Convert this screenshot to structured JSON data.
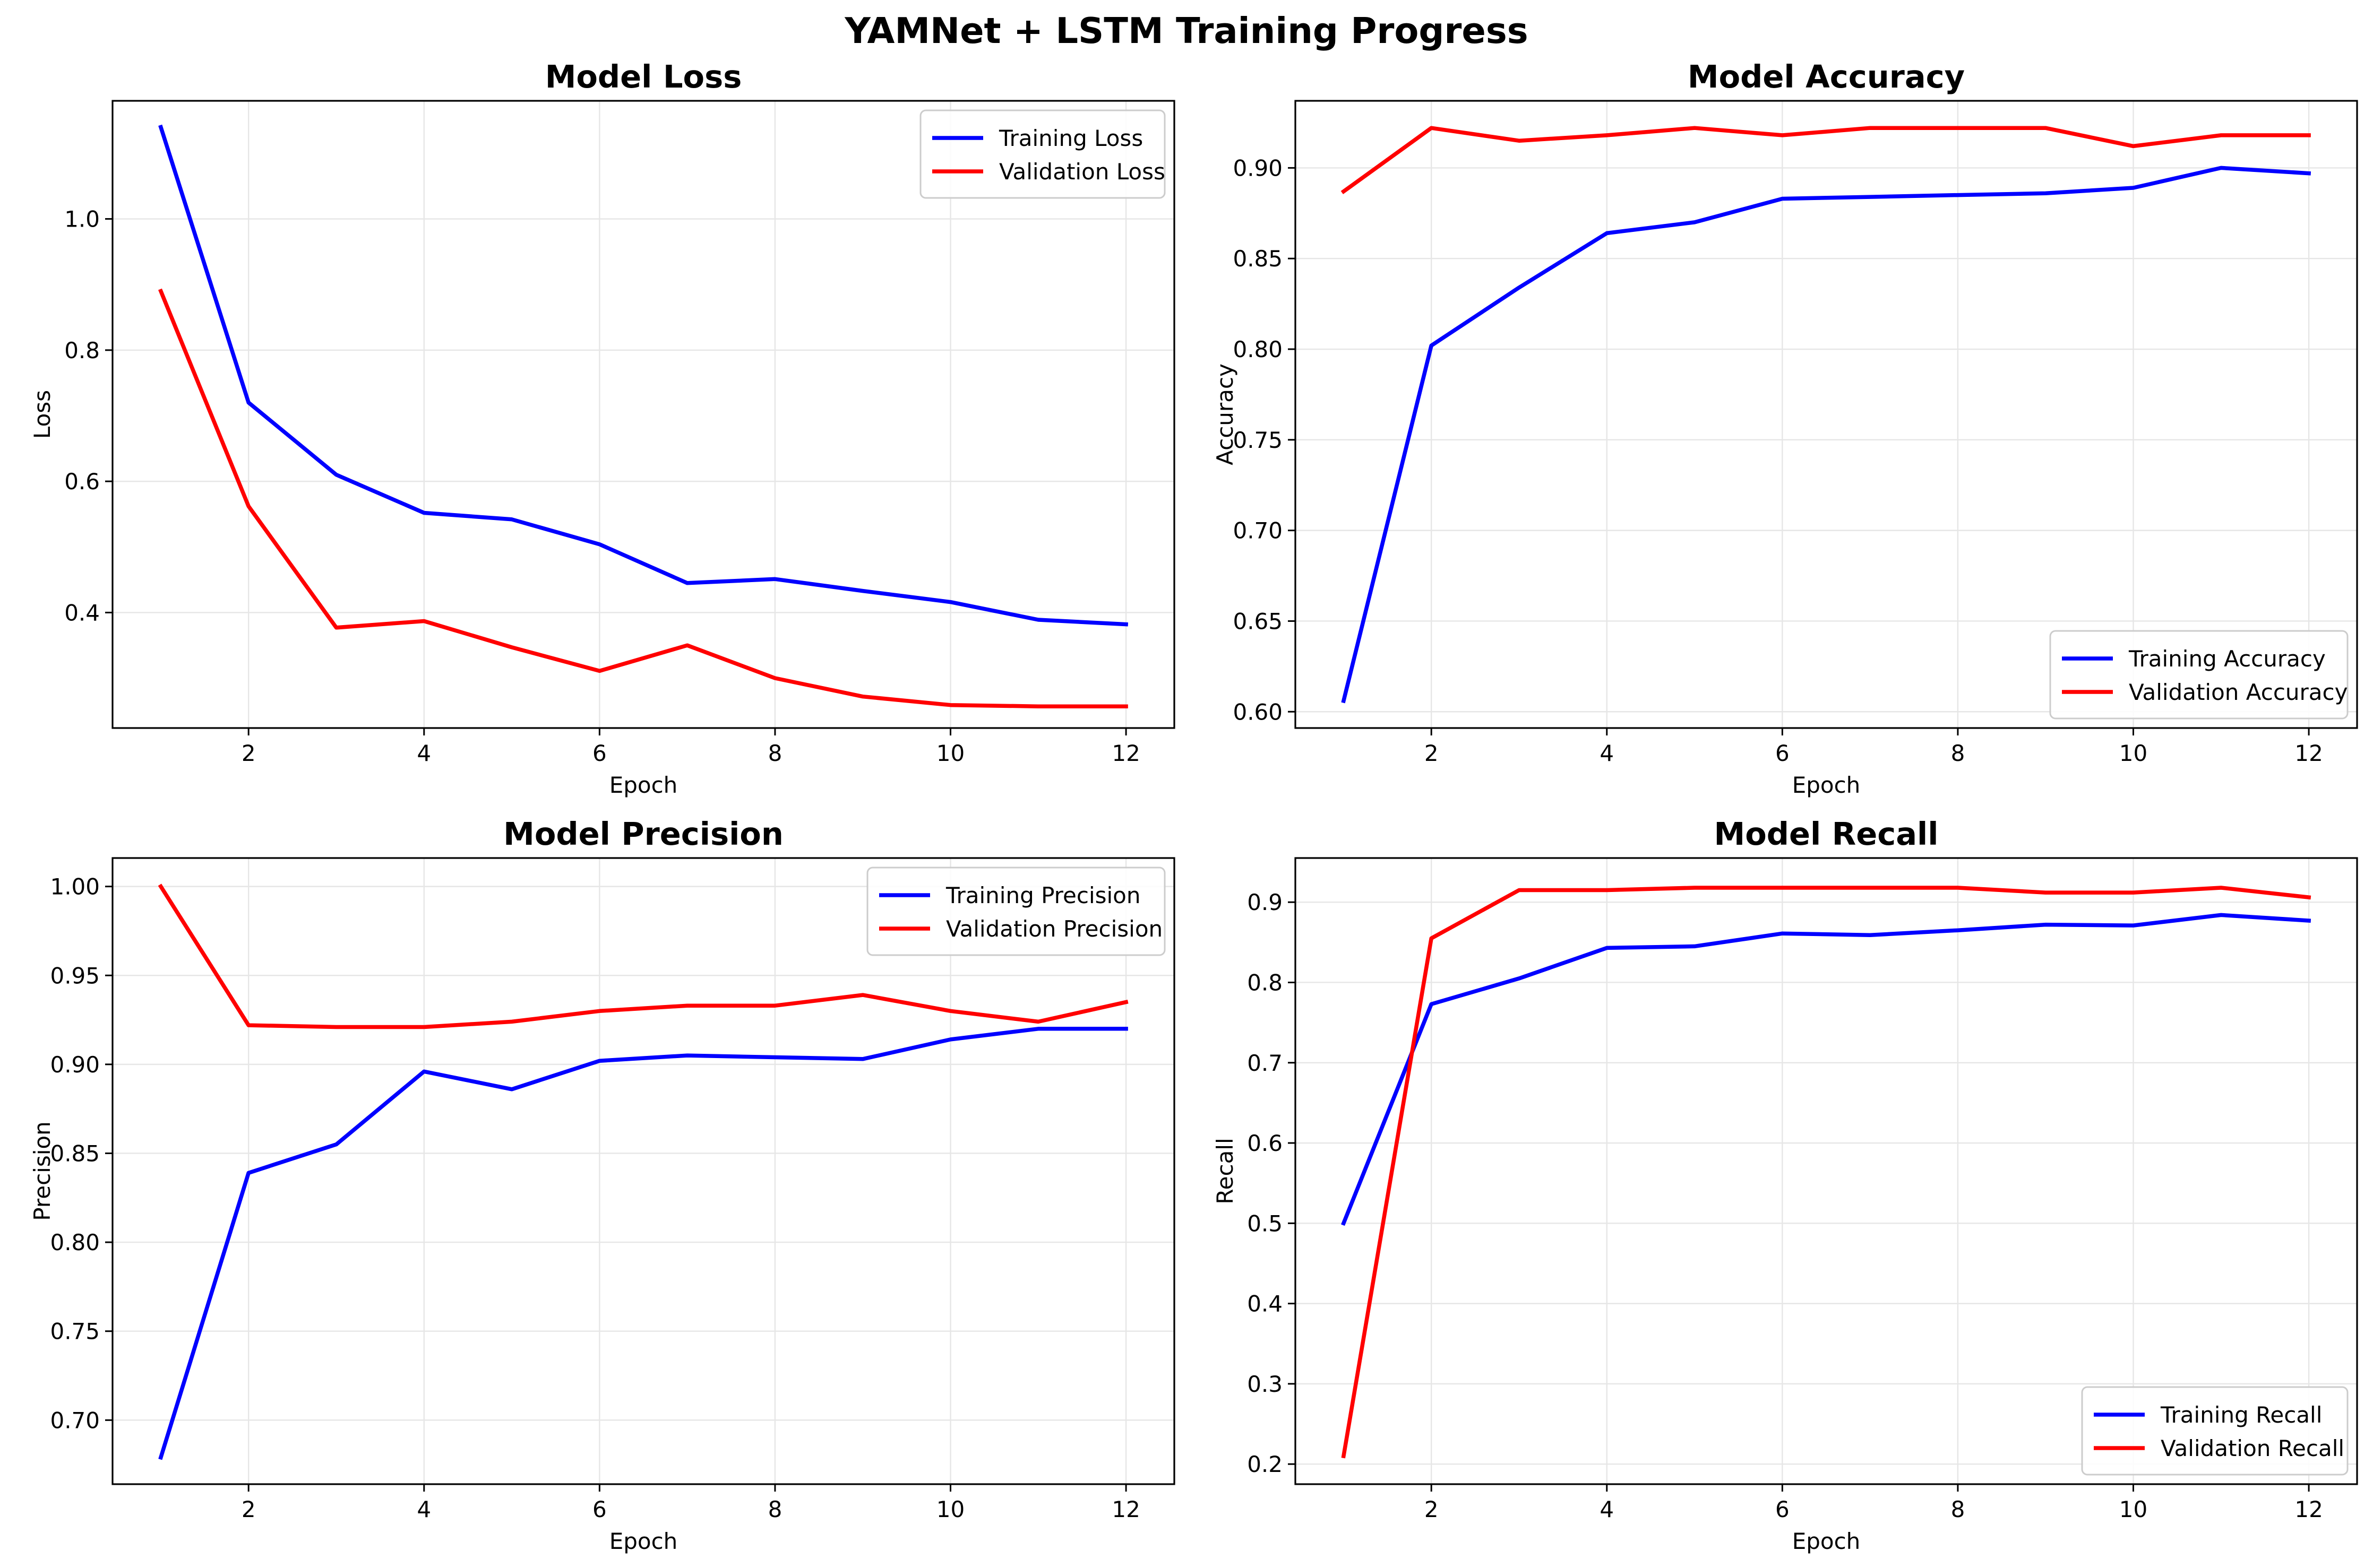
{
  "figure": {
    "title": "YAMNet + LSTM Training Progress"
  },
  "colors": {
    "training": "#0000ff",
    "validation": "#ff0000",
    "grid": "#e6e6e6",
    "axes": "#000000"
  },
  "chart_data": [
    {
      "type": "line",
      "title": "Model Loss",
      "xlabel": "Epoch",
      "ylabel": "Loss",
      "x": [
        1,
        2,
        3,
        4,
        5,
        6,
        7,
        8,
        9,
        10,
        11,
        12
      ],
      "xlim": [
        0.45,
        12.55
      ],
      "ylim": [
        0.224,
        1.18
      ],
      "xticks": [
        2,
        4,
        6,
        8,
        10,
        12
      ],
      "yticks": [
        0.4,
        0.6,
        0.8,
        1.0
      ],
      "ytick_labels": [
        "0.4",
        "0.6",
        "0.8",
        "1.0"
      ],
      "grid": true,
      "legend_position": "top-right",
      "series": [
        {
          "name": "Training Loss",
          "color": "#0000ff",
          "values": [
            1.14,
            0.72,
            0.61,
            0.552,
            0.542,
            0.504,
            0.445,
            0.451,
            0.433,
            0.416,
            0.389,
            0.382
          ]
        },
        {
          "name": "Validation Loss",
          "color": "#ff0000",
          "values": [
            0.89,
            0.562,
            0.377,
            0.387,
            0.347,
            0.311,
            0.35,
            0.3,
            0.272,
            0.259,
            0.257,
            0.257
          ]
        }
      ]
    },
    {
      "type": "line",
      "title": "Model Accuracy",
      "xlabel": "Epoch",
      "ylabel": "Accuracy",
      "x": [
        1,
        2,
        3,
        4,
        5,
        6,
        7,
        8,
        9,
        10,
        11,
        12
      ],
      "xlim": [
        0.45,
        12.55
      ],
      "ylim": [
        0.591,
        0.937
      ],
      "xticks": [
        2,
        4,
        6,
        8,
        10,
        12
      ],
      "yticks": [
        0.6,
        0.65,
        0.7,
        0.75,
        0.8,
        0.85,
        0.9
      ],
      "ytick_labels": [
        "0.60",
        "0.65",
        "0.70",
        "0.75",
        "0.80",
        "0.85",
        "0.90"
      ],
      "grid": true,
      "legend_position": "bottom-right",
      "series": [
        {
          "name": "Training Accuracy",
          "color": "#0000ff",
          "values": [
            0.606,
            0.802,
            0.834,
            0.864,
            0.87,
            0.883,
            0.884,
            0.885,
            0.886,
            0.889,
            0.9,
            0.897
          ]
        },
        {
          "name": "Validation Accuracy",
          "color": "#ff0000",
          "values": [
            0.887,
            0.922,
            0.915,
            0.918,
            0.922,
            0.918,
            0.922,
            0.922,
            0.922,
            0.912,
            0.918,
            0.918
          ]
        }
      ]
    },
    {
      "type": "line",
      "title": "Model Precision",
      "xlabel": "Epoch",
      "ylabel": "Precision",
      "x": [
        1,
        2,
        3,
        4,
        5,
        6,
        7,
        8,
        9,
        10,
        11,
        12
      ],
      "xlim": [
        0.45,
        12.55
      ],
      "ylim": [
        0.664,
        1.016
      ],
      "xticks": [
        2,
        4,
        6,
        8,
        10,
        12
      ],
      "yticks": [
        0.7,
        0.75,
        0.8,
        0.85,
        0.9,
        0.95,
        1.0
      ],
      "ytick_labels": [
        "0.70",
        "0.75",
        "0.80",
        "0.85",
        "0.90",
        "0.95",
        "1.00"
      ],
      "grid": true,
      "legend_position": "top-right",
      "series": [
        {
          "name": "Training Precision",
          "color": "#0000ff",
          "values": [
            0.679,
            0.839,
            0.855,
            0.896,
            0.886,
            0.902,
            0.905,
            0.904,
            0.903,
            0.914,
            0.92,
            0.92
          ]
        },
        {
          "name": "Validation Precision",
          "color": "#ff0000",
          "values": [
            1.0,
            0.922,
            0.921,
            0.921,
            0.924,
            0.93,
            0.933,
            0.933,
            0.939,
            0.93,
            0.924,
            0.935
          ]
        }
      ]
    },
    {
      "type": "line",
      "title": "Model Recall",
      "xlabel": "Epoch",
      "ylabel": "Recall",
      "x": [
        1,
        2,
        3,
        4,
        5,
        6,
        7,
        8,
        9,
        10,
        11,
        12
      ],
      "xlim": [
        0.45,
        12.55
      ],
      "ylim": [
        0.175,
        0.955
      ],
      "xticks": [
        2,
        4,
        6,
        8,
        10,
        12
      ],
      "yticks": [
        0.2,
        0.3,
        0.4,
        0.5,
        0.6,
        0.7,
        0.8,
        0.9
      ],
      "ytick_labels": [
        "0.2",
        "0.3",
        "0.4",
        "0.5",
        "0.6",
        "0.7",
        "0.8",
        "0.9"
      ],
      "grid": true,
      "legend_position": "bottom-right",
      "series": [
        {
          "name": "Training Recall",
          "color": "#0000ff",
          "values": [
            0.5,
            0.773,
            0.805,
            0.843,
            0.845,
            0.861,
            0.859,
            0.865,
            0.872,
            0.871,
            0.884,
            0.877
          ]
        },
        {
          "name": "Validation Recall",
          "color": "#ff0000",
          "values": [
            0.21,
            0.855,
            0.915,
            0.915,
            0.918,
            0.918,
            0.918,
            0.918,
            0.912,
            0.912,
            0.918,
            0.906
          ]
        }
      ]
    }
  ]
}
